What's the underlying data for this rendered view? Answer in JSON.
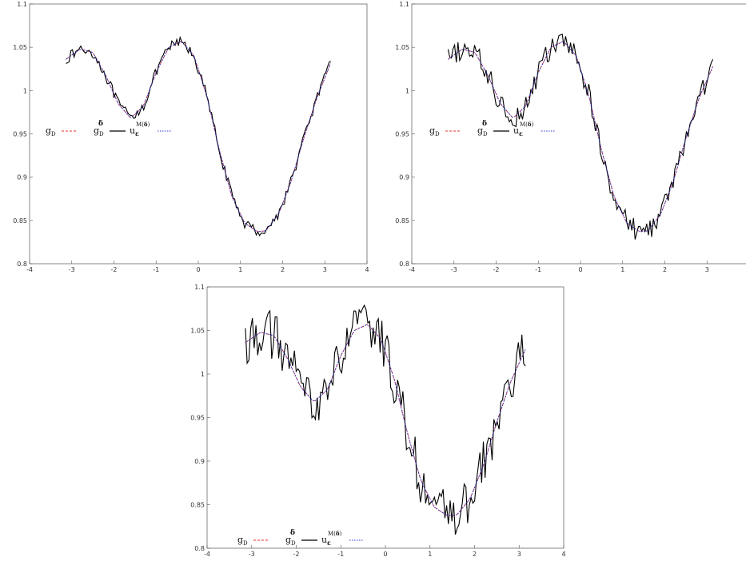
{
  "chart_data": [
    {
      "type": "line",
      "panel": "top-left",
      "noise": 0.006,
      "xlim": [
        -4,
        4
      ],
      "ylim": [
        0.8,
        1.1
      ],
      "xticks": [
        "-4",
        "-3",
        "-2",
        "-1",
        "0",
        "1",
        "2",
        "3",
        "4"
      ],
      "yticks": [
        "0.8",
        "0.85",
        "0.9",
        "0.95",
        "1",
        "1.05",
        "1.1"
      ],
      "grid": false,
      "legend_position": "middle-left",
      "legend": {
        "g_base": "g",
        "g_sub": "D",
        "gd_base": "g",
        "gd_sub": "D",
        "gd_sup": "δ",
        "u_base": "u",
        "u_sub": "ε",
        "u_sup_pre": "M(",
        "u_sup_delta": "δ",
        "u_sup_post": ")"
      },
      "series": [
        {
          "key": "g_D",
          "color": "#e8322b",
          "style": "dashed",
          "x": [
            -3.14,
            -2.8,
            -2.5,
            -2.2,
            -1.9,
            -1.6,
            -1.3,
            -1.0,
            -0.7,
            -0.4,
            -0.1,
            0.2,
            0.5,
            0.8,
            1.1,
            1.4,
            1.6,
            1.9,
            2.2,
            2.5,
            2.8,
            3.14
          ],
          "y": [
            1.036,
            1.048,
            1.044,
            1.018,
            0.985,
            0.968,
            0.982,
            1.021,
            1.05,
            1.057,
            1.04,
            0.994,
            0.931,
            0.877,
            0.847,
            0.837,
            0.838,
            0.857,
            0.895,
            0.945,
            0.99,
            1.032
          ]
        },
        {
          "key": "g_D_delta",
          "color": "#000000",
          "style": "solid",
          "x": [
            -3.14,
            -2.8,
            -2.5,
            -2.2,
            -1.9,
            -1.6,
            -1.3,
            -1.0,
            -0.7,
            -0.4,
            -0.1,
            0.2,
            0.5,
            0.8,
            1.1,
            1.4,
            1.6,
            1.9,
            2.2,
            2.5,
            2.8,
            3.14
          ],
          "y": [
            1.036,
            1.048,
            1.044,
            1.018,
            0.985,
            0.968,
            0.982,
            1.021,
            1.05,
            1.057,
            1.04,
            0.994,
            0.931,
            0.877,
            0.847,
            0.837,
            0.838,
            0.857,
            0.895,
            0.945,
            0.99,
            1.032
          ]
        },
        {
          "key": "u_eps",
          "color": "#2a3bd6",
          "style": "dotted",
          "x": [
            -3.14,
            -2.8,
            -2.5,
            -2.2,
            -1.9,
            -1.6,
            -1.3,
            -1.0,
            -0.7,
            -0.4,
            -0.1,
            0.2,
            0.5,
            0.8,
            1.1,
            1.4,
            1.6,
            1.9,
            2.2,
            2.5,
            2.8,
            3.14
          ],
          "y": [
            1.036,
            1.048,
            1.044,
            1.018,
            0.985,
            0.968,
            0.982,
            1.021,
            1.05,
            1.057,
            1.04,
            0.994,
            0.931,
            0.877,
            0.847,
            0.837,
            0.838,
            0.857,
            0.895,
            0.945,
            0.99,
            1.032
          ]
        }
      ]
    },
    {
      "type": "line",
      "panel": "top-right",
      "noise": 0.013,
      "xlim": [
        -4,
        4
      ],
      "ylim": [
        0.8,
        1.1
      ],
      "xticks": [
        "-4",
        "-3",
        "-2",
        "-1",
        "0",
        "1",
        "2",
        "3",
        "4"
      ],
      "yticks": [
        "0.8",
        "0.85",
        "0.9",
        "0.95",
        "1",
        "1.05",
        "1.1"
      ],
      "grid": false,
      "legend_position": "middle-left",
      "legend": {
        "g_base": "g",
        "g_sub": "D",
        "gd_base": "g",
        "gd_sub": "D",
        "gd_sup": "δ",
        "u_base": "u",
        "u_sub": "ε",
        "u_sup_pre": "M(",
        "u_sup_delta": "δ",
        "u_sup_post": ")"
      },
      "series": [
        {
          "key": "g_D",
          "color": "#e8322b",
          "style": "dashed",
          "x": [
            -3.14,
            -2.8,
            -2.5,
            -2.2,
            -1.9,
            -1.6,
            -1.3,
            -1.0,
            -0.7,
            -0.4,
            -0.1,
            0.2,
            0.5,
            0.8,
            1.1,
            1.4,
            1.6,
            1.9,
            2.2,
            2.5,
            2.8,
            3.14
          ],
          "y": [
            1.036,
            1.048,
            1.044,
            1.018,
            0.985,
            0.968,
            0.982,
            1.021,
            1.05,
            1.057,
            1.04,
            0.994,
            0.931,
            0.877,
            0.847,
            0.837,
            0.838,
            0.857,
            0.895,
            0.945,
            0.99,
            1.028
          ]
        },
        {
          "key": "g_D_delta",
          "color": "#000000",
          "style": "solid",
          "x": [
            -3.14,
            -2.8,
            -2.5,
            -2.2,
            -1.9,
            -1.6,
            -1.3,
            -1.0,
            -0.7,
            -0.4,
            -0.1,
            0.2,
            0.5,
            0.8,
            1.1,
            1.4,
            1.6,
            1.9,
            2.2,
            2.5,
            2.8,
            3.14
          ],
          "y": [
            1.036,
            1.048,
            1.044,
            1.018,
            0.985,
            0.968,
            0.982,
            1.021,
            1.05,
            1.057,
            1.04,
            0.994,
            0.931,
            0.877,
            0.847,
            0.837,
            0.838,
            0.857,
            0.895,
            0.945,
            0.99,
            1.028
          ]
        },
        {
          "key": "u_eps",
          "color": "#2a3bd6",
          "style": "dotted",
          "x": [
            -3.14,
            -2.8,
            -2.5,
            -2.2,
            -1.9,
            -1.6,
            -1.3,
            -1.0,
            -0.7,
            -0.4,
            -0.1,
            0.2,
            0.5,
            0.8,
            1.1,
            1.4,
            1.6,
            1.9,
            2.2,
            2.5,
            2.8,
            3.14
          ],
          "y": [
            1.036,
            1.048,
            1.044,
            1.018,
            0.985,
            0.968,
            0.982,
            1.021,
            1.05,
            1.057,
            1.04,
            0.994,
            0.931,
            0.877,
            0.847,
            0.837,
            0.838,
            0.857,
            0.895,
            0.945,
            0.99,
            1.028
          ]
        }
      ]
    },
    {
      "type": "line",
      "panel": "bottom-center",
      "noise": 0.028,
      "xlim": [
        -4,
        4
      ],
      "ylim": [
        0.8,
        1.1
      ],
      "xticks": [
        "-4",
        "-3",
        "-2",
        "-1",
        "0",
        "1",
        "2",
        "3",
        "4"
      ],
      "yticks": [
        "0.8",
        "0.85",
        "0.9",
        "0.95",
        "1",
        "1.05",
        "1.1"
      ],
      "grid": false,
      "legend_position": "bottom-left",
      "legend": {
        "g_base": "g",
        "g_sub": "D",
        "gd_base": "g",
        "gd_sub": "D",
        "gd_sup": "δ",
        "u_base": "u",
        "u_sub": "ε",
        "u_sup_pre": "M(",
        "u_sup_delta": "δ",
        "u_sup_post": ")"
      },
      "series": [
        {
          "key": "g_D",
          "color": "#e8322b",
          "style": "dashed",
          "x": [
            -3.14,
            -2.8,
            -2.5,
            -2.2,
            -1.9,
            -1.6,
            -1.3,
            -1.0,
            -0.7,
            -0.4,
            -0.1,
            0.2,
            0.5,
            0.8,
            1.1,
            1.4,
            1.6,
            1.9,
            2.2,
            2.5,
            2.8,
            3.14
          ],
          "y": [
            1.036,
            1.048,
            1.044,
            1.018,
            0.985,
            0.968,
            0.982,
            1.021,
            1.05,
            1.057,
            1.04,
            0.994,
            0.931,
            0.877,
            0.847,
            0.837,
            0.838,
            0.857,
            0.895,
            0.945,
            0.99,
            1.028
          ]
        },
        {
          "key": "g_D_delta",
          "color": "#000000",
          "style": "solid",
          "x": [
            -3.14,
            -2.8,
            -2.5,
            -2.2,
            -1.9,
            -1.6,
            -1.3,
            -1.0,
            -0.7,
            -0.4,
            -0.1,
            0.2,
            0.5,
            0.8,
            1.1,
            1.4,
            1.6,
            1.9,
            2.2,
            2.5,
            2.8,
            3.14
          ],
          "y": [
            1.036,
            1.048,
            1.044,
            1.018,
            0.985,
            0.968,
            0.982,
            1.021,
            1.05,
            1.057,
            1.04,
            0.994,
            0.931,
            0.877,
            0.847,
            0.837,
            0.838,
            0.857,
            0.895,
            0.945,
            0.99,
            1.028
          ]
        },
        {
          "key": "u_eps",
          "color": "#2a3bd6",
          "style": "dotted",
          "x": [
            -3.14,
            -2.8,
            -2.5,
            -2.2,
            -1.9,
            -1.6,
            -1.3,
            -1.0,
            -0.7,
            -0.4,
            -0.1,
            0.2,
            0.5,
            0.8,
            1.1,
            1.4,
            1.6,
            1.9,
            2.2,
            2.5,
            2.8,
            3.14
          ],
          "y": [
            1.036,
            1.048,
            1.044,
            1.018,
            0.985,
            0.968,
            0.982,
            1.021,
            1.05,
            1.057,
            1.04,
            0.994,
            0.931,
            0.877,
            0.847,
            0.837,
            0.838,
            0.857,
            0.895,
            0.945,
            0.99,
            1.028
          ]
        }
      ]
    }
  ]
}
